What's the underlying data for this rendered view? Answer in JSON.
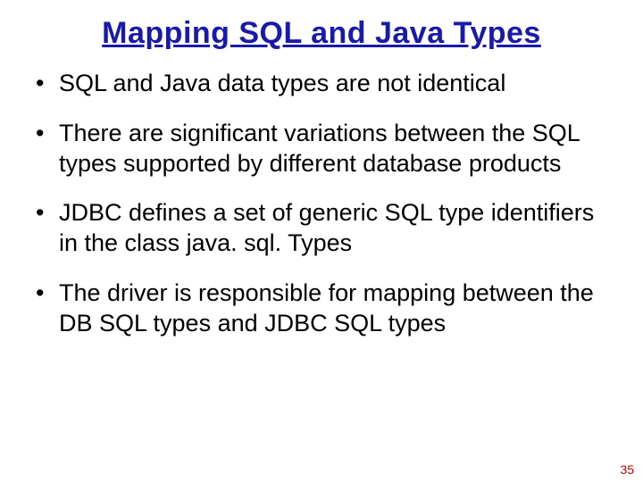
{
  "slide": {
    "title": "Mapping SQL and Java Types",
    "title_color": "#1a1aaa",
    "title_fontsize": 34,
    "bullet_fontsize": 27,
    "bullet_color": "#000000",
    "background_color": "#ffffff",
    "bullets": [
      "SQL and Java data types are not identical",
      "There are significant variations between the SQL types supported by different database products",
      "JDBC defines a set of generic SQL type identifiers in the class java. sql. Types",
      "The driver is responsible for mapping between the DB SQL types and JDBC SQL types"
    ],
    "page_number": "35",
    "page_number_color": "#cc0000"
  }
}
